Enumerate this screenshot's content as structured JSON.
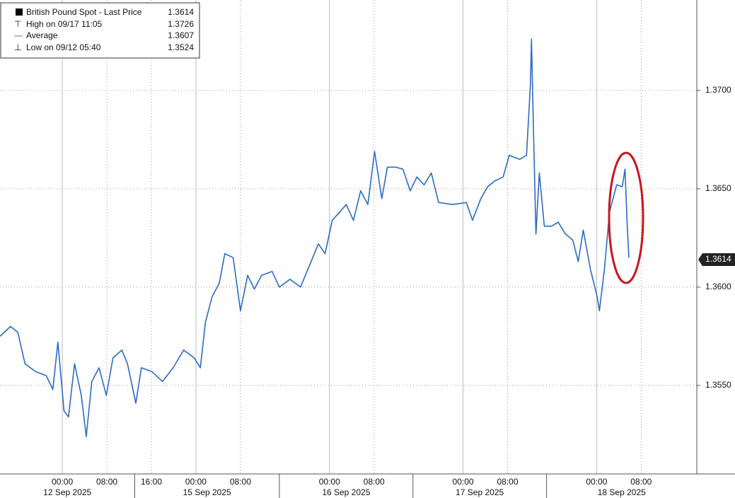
{
  "chart_data": {
    "type": "line",
    "series": [
      {
        "name": "British Pound Spot - Last Price",
        "color": "#2a6bc4",
        "last_price": 1.3614,
        "x": [
          -11.2,
          -9.3,
          -8.0,
          -6.7,
          -4.8,
          -2.9,
          -1.7,
          -0.8,
          0.3,
          1.1,
          2.2,
          3.4,
          4.3,
          5.3,
          6.6,
          7.9,
          9.1,
          10.7,
          11.7,
          13.2,
          14.2,
          16.1,
          18.0,
          19.9,
          21.8,
          23.7,
          24.8,
          25.7,
          26.9,
          28.2,
          29.2,
          30.7,
          32.0,
          33.3,
          34.5,
          35.8,
          37.7,
          39.0,
          40.9,
          42.8,
          44.7,
          46.0,
          47.2,
          48.5,
          49.8,
          51.0,
          52.3,
          53.6,
          54.9,
          56.1,
          57.4,
          58.4,
          59.9,
          61.2,
          62.5,
          63.7,
          65.0,
          66.3,
          67.6,
          70.1,
          72.6,
          73.7,
          75.2,
          76.4,
          77.7,
          79.2,
          80.3,
          82.2,
          83.4,
          84.1,
          84.3,
          84.7,
          85.1,
          85.7,
          86.6,
          87.9,
          89.1,
          90.4,
          91.7,
          92.7,
          93.6,
          94.9,
          96.1,
          96.5,
          97.4,
          98.3,
          99.6,
          100.6,
          101.1,
          101.5,
          101.8
        ],
        "values": [
          1.3575,
          1.358,
          1.3577,
          1.3561,
          1.3557,
          1.3555,
          1.3548,
          1.3572,
          1.3537,
          1.3534,
          1.3561,
          1.3545,
          1.3524,
          1.3552,
          1.3559,
          1.3545,
          1.3564,
          1.3568,
          1.3561,
          1.3541,
          1.3559,
          1.3557,
          1.3552,
          1.3559,
          1.3568,
          1.3564,
          1.3559,
          1.3582,
          1.3595,
          1.3602,
          1.3617,
          1.3615,
          1.3588,
          1.3606,
          1.3599,
          1.3606,
          1.3608,
          1.36,
          1.3604,
          1.36,
          1.3613,
          1.3622,
          1.3617,
          1.3634,
          1.3638,
          1.3642,
          1.3634,
          1.3649,
          1.3642,
          1.3669,
          1.3645,
          1.3661,
          1.3661,
          1.366,
          1.3649,
          1.3656,
          1.3652,
          1.3658,
          1.3643,
          1.3642,
          1.3643,
          1.3634,
          1.3645,
          1.3651,
          1.3654,
          1.3656,
          1.3667,
          1.3665,
          1.3667,
          1.3703,
          1.3726,
          1.3674,
          1.3627,
          1.3658,
          1.3631,
          1.3631,
          1.3633,
          1.3627,
          1.3624,
          1.3613,
          1.3629,
          1.3609,
          1.3595,
          1.3588,
          1.3609,
          1.3638,
          1.3652,
          1.3651,
          1.366,
          1.3631,
          1.3615
        ]
      }
    ],
    "stats": [
      {
        "label": "High on 09/17 11:05",
        "value": 1.3726
      },
      {
        "label": "Average",
        "value": 1.3607
      },
      {
        "label": "Low on 09/12 05:40",
        "value": 1.3524
      }
    ],
    "xlim": [
      -11.2,
      114
    ],
    "ylim": [
      1.3505,
      1.3746
    ],
    "yticks": [
      {
        "value": 1.355,
        "label": "1.3550"
      },
      {
        "value": 1.36,
        "label": "1.3600"
      },
      {
        "value": 1.365,
        "label": "1.3650"
      },
      {
        "value": 1.37,
        "label": "1.3700"
      }
    ],
    "xticks": [
      {
        "value": 0,
        "label": "00:00"
      },
      {
        "value": 8,
        "label": "08:00"
      },
      {
        "value": 16,
        "label": "16:00"
      },
      {
        "value": 24,
        "label": "00:00"
      },
      {
        "value": 32,
        "label": "08:00"
      },
      {
        "value": 48,
        "label": "00:00"
      },
      {
        "value": 56,
        "label": "08:00"
      },
      {
        "value": 72,
        "label": "00:00"
      },
      {
        "value": 80,
        "label": "08:00"
      },
      {
        "value": 96,
        "label": "00:00"
      },
      {
        "value": 104,
        "label": "08:00"
      }
    ],
    "x_groups": [
      {
        "label": "12 Sep 2025",
        "range": [
          -11.2,
          13
        ]
      },
      {
        "label": "15 Sep 2025",
        "range": [
          13,
          39
        ]
      },
      {
        "label": "16 Sep 2025",
        "range": [
          39,
          63
        ]
      },
      {
        "label": "17 Sep 2025",
        "range": [
          63,
          87
        ]
      },
      {
        "label": "18 Sep 2025",
        "range": [
          87,
          114
        ]
      }
    ],
    "grid": true
  }
}
